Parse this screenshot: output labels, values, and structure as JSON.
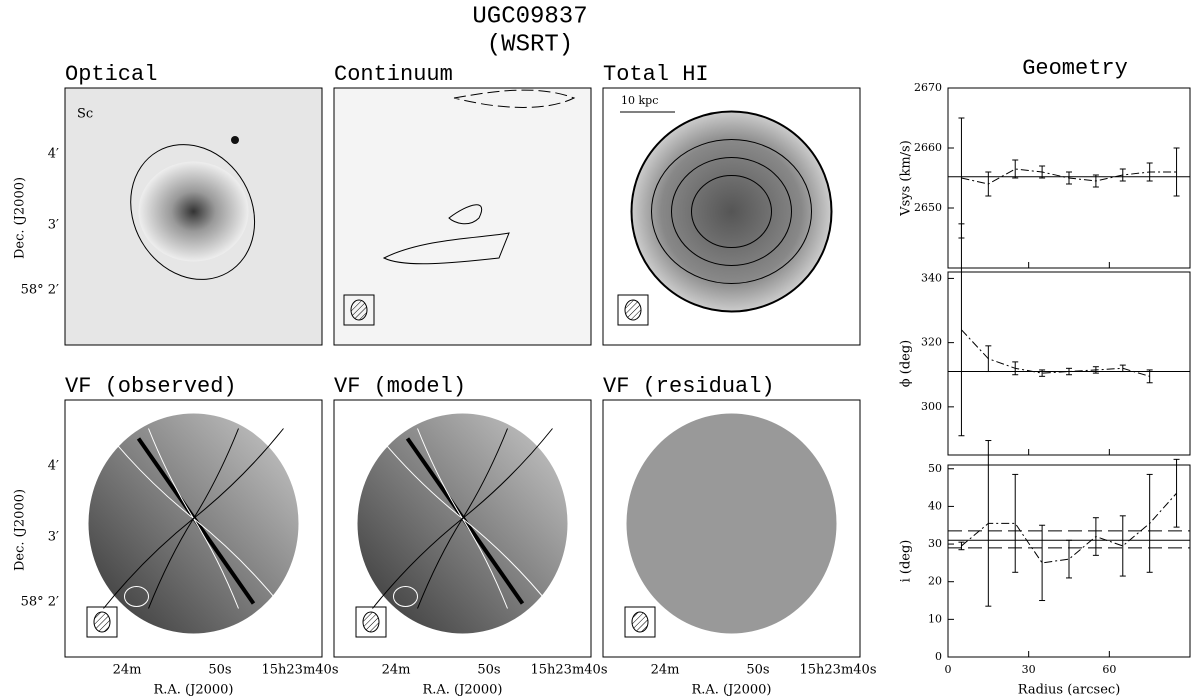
{
  "title": "UGC09837",
  "subtitle": "(WSRT)",
  "panels": [
    {
      "title": "Optical",
      "note": "Sc"
    },
    {
      "title": "Continuum"
    },
    {
      "title": "Total HI",
      "note": "10 kpc"
    },
    {
      "title": "VF (observed)"
    },
    {
      "title": "VF (model)"
    },
    {
      "title": "VF (residual)"
    }
  ],
  "dec_label": "Dec. (J2000)",
  "ra_label": "R.A. (J2000)",
  "dec_ticks": [
    "4′",
    "3′",
    "58° 2′"
  ],
  "ra_ticks": [
    "24m",
    "50s",
    "15h23m40s"
  ],
  "geometry_title": "Geometry",
  "chart_data": [
    {
      "type": "line",
      "ylabel": "Vsys (km/s)",
      "x": [
        5,
        15,
        25,
        35,
        45,
        55,
        65,
        75,
        85
      ],
      "values": [
        2655,
        2654,
        2656.5,
        2656,
        2655,
        2654.5,
        2655.5,
        2656,
        2656
      ],
      "errors": [
        10,
        2,
        1.5,
        1,
        1,
        1,
        1,
        1.5,
        4
      ],
      "hlines": [
        2655.2
      ],
      "xlim": [
        0,
        90
      ],
      "xticks": [
        0,
        30,
        60
      ],
      "ylim": [
        2640,
        2670
      ],
      "yticks": [
        2650,
        2660,
        2670
      ]
    },
    {
      "type": "line",
      "ylabel": "ϕ (deg)",
      "x": [
        5,
        15,
        25,
        35,
        45,
        55,
        65,
        75
      ],
      "values": [
        324,
        315,
        312,
        310.5,
        311,
        311.5,
        312,
        309.5
      ],
      "errors": [
        33,
        4,
        2,
        1,
        1,
        1,
        1,
        2
      ],
      "hlines": [
        311
      ],
      "xlim": [
        0,
        90
      ],
      "xticks": [
        0,
        30,
        60
      ],
      "ylim": [
        285,
        342
      ],
      "yticks": [
        300,
        320,
        340
      ]
    },
    {
      "type": "line",
      "ylabel": "i (deg)",
      "xlabel": "Radius (arcsec)",
      "x": [
        5,
        15,
        25,
        35,
        45,
        55,
        65,
        75,
        85
      ],
      "values": [
        29.5,
        35.5,
        35.5,
        25,
        26,
        32,
        29.5,
        35.5,
        43.5
      ],
      "errors": [
        1,
        22,
        13,
        10,
        5,
        5,
        8,
        13,
        9
      ],
      "hlines": [
        31
      ],
      "dashed_hlines": [
        29,
        33.5
      ],
      "xlim": [
        0,
        90
      ],
      "xticks": [
        0,
        30,
        60
      ],
      "ylim": [
        0,
        51
      ],
      "yticks": [
        0,
        10,
        20,
        30,
        40,
        50
      ]
    }
  ]
}
